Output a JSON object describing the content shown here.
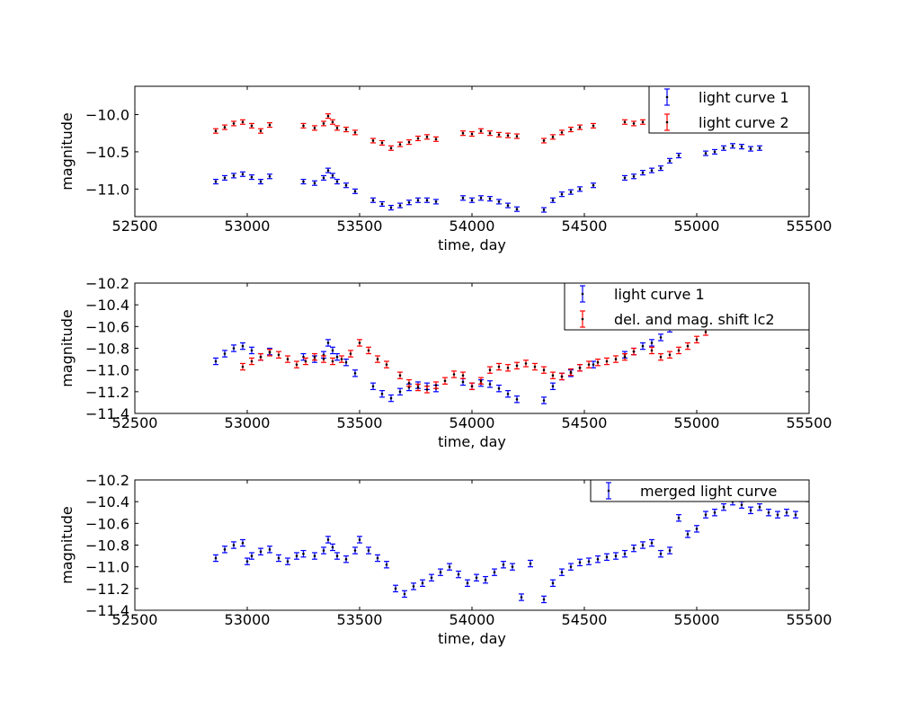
{
  "colors": {
    "series_a": "#0000ff",
    "series_b": "#ff0000",
    "marker": "#000000"
  },
  "chart_data": [
    {
      "type": "scatter",
      "title": "",
      "xlabel": "time, day",
      "ylabel": "magnitude",
      "xlim": [
        52500,
        55500
      ],
      "ylim": [
        -11.37,
        -9.62
      ],
      "y_inverted": true,
      "xticks": [
        "52500",
        "53000",
        "53500",
        "54000",
        "54500",
        "55000",
        "55500"
      ],
      "yticks": [
        "−10.0",
        "−10.5",
        "−11.0"
      ],
      "ytick_values": [
        -10.0,
        -10.5,
        -11.0
      ],
      "error": 0.03,
      "legend_position": "top-right",
      "series": [
        {
          "name": "light curve 1",
          "color": "#0000ff",
          "x": [
            52860,
            52900,
            52940,
            52980,
            53020,
            53060,
            53100,
            53250,
            53300,
            53340,
            53360,
            53380,
            53400,
            53440,
            53480,
            53560,
            53600,
            53640,
            53680,
            53720,
            53760,
            53800,
            53840,
            53960,
            54000,
            54040,
            54080,
            54120,
            54160,
            54200,
            54320,
            54360,
            54400,
            54440,
            54480,
            54540,
            54680,
            54720,
            54760,
            54800,
            54840,
            54880,
            54920,
            55040,
            55080,
            55120,
            55160,
            55200,
            55240,
            55280
          ],
          "y": [
            -10.9,
            -10.85,
            -10.82,
            -10.8,
            -10.84,
            -10.9,
            -10.83,
            -10.9,
            -10.92,
            -10.85,
            -10.75,
            -10.82,
            -10.9,
            -10.95,
            -11.03,
            -11.15,
            -11.2,
            -11.25,
            -11.22,
            -11.18,
            -11.15,
            -11.15,
            -11.17,
            -11.12,
            -11.15,
            -11.12,
            -11.13,
            -11.17,
            -11.22,
            -11.27,
            -11.28,
            -11.15,
            -11.07,
            -11.04,
            -11.0,
            -10.95,
            -10.85,
            -10.83,
            -10.78,
            -10.75,
            -10.72,
            -10.62,
            -10.55,
            -10.52,
            -10.5,
            -10.45,
            -10.42,
            -10.43,
            -10.46,
            -10.45
          ]
        },
        {
          "name": "light curve 2",
          "color": "#ff0000",
          "x": [
            52860,
            52900,
            52940,
            52980,
            53020,
            53060,
            53100,
            53250,
            53300,
            53340,
            53360,
            53380,
            53400,
            53440,
            53480,
            53560,
            53600,
            53640,
            53680,
            53720,
            53760,
            53800,
            53840,
            53960,
            54000,
            54040,
            54080,
            54120,
            54160,
            54200,
            54320,
            54360,
            54400,
            54440,
            54480,
            54540,
            54680,
            54720,
            54760
          ],
          "y": [
            -10.22,
            -10.17,
            -10.12,
            -10.1,
            -10.15,
            -10.22,
            -10.14,
            -10.15,
            -10.18,
            -10.12,
            -10.02,
            -10.1,
            -10.18,
            -10.2,
            -10.24,
            -10.35,
            -10.38,
            -10.45,
            -10.4,
            -10.37,
            -10.32,
            -10.3,
            -10.33,
            -10.25,
            -10.26,
            -10.22,
            -10.25,
            -10.27,
            -10.28,
            -10.29,
            -10.35,
            -10.3,
            -10.24,
            -10.2,
            -10.17,
            -10.15,
            -10.1,
            -10.12,
            -10.1
          ]
        }
      ]
    },
    {
      "type": "scatter",
      "title": "",
      "xlabel": "time, day",
      "ylabel": "magnitude",
      "xlim": [
        52500,
        55500
      ],
      "ylim": [
        -11.4,
        -10.2
      ],
      "y_inverted": true,
      "xticks": [
        "52500",
        "53000",
        "53500",
        "54000",
        "54500",
        "55000",
        "55500"
      ],
      "yticks": [
        "−10.2",
        "−10.4",
        "−10.6",
        "−10.8",
        "−11.0",
        "−11.2",
        "−11.4"
      ],
      "ytick_values": [
        -10.2,
        -10.4,
        -10.6,
        -10.8,
        -11.0,
        -11.2,
        -11.4
      ],
      "error": 0.03,
      "legend_position": "top-right",
      "series": [
        {
          "name": "light curve 1",
          "color": "#0000ff",
          "x": [
            52860,
            52900,
            52940,
            52980,
            53020,
            53060,
            53100,
            53250,
            53300,
            53340,
            53360,
            53380,
            53400,
            53440,
            53480,
            53560,
            53600,
            53640,
            53680,
            53720,
            53760,
            53800,
            53840,
            53960,
            54000,
            54040,
            54080,
            54120,
            54160,
            54200,
            54320,
            54360,
            54400,
            54440,
            54480,
            54540,
            54680,
            54720,
            54760,
            54800,
            54840,
            54880
          ],
          "y": [
            -10.92,
            -10.85,
            -10.8,
            -10.78,
            -10.82,
            -10.88,
            -10.83,
            -10.88,
            -10.9,
            -10.86,
            -10.75,
            -10.82,
            -10.88,
            -10.93,
            -11.03,
            -11.15,
            -11.22,
            -11.26,
            -11.2,
            -11.16,
            -11.14,
            -11.15,
            -11.17,
            -11.11,
            -11.15,
            -11.12,
            -11.13,
            -11.17,
            -11.22,
            -11.27,
            -11.28,
            -11.15,
            -11.06,
            -11.03,
            -10.98,
            -10.95,
            -10.86,
            -10.83,
            -10.78,
            -10.75,
            -10.7,
            -10.62
          ]
        },
        {
          "name": "del. and mag. shift lc2",
          "color": "#ff0000",
          "x": [
            52980,
            53020,
            53060,
            53100,
            53140,
            53180,
            53220,
            53260,
            53300,
            53340,
            53380,
            53420,
            53460,
            53500,
            53540,
            53580,
            53620,
            53680,
            53720,
            53760,
            53800,
            53840,
            53880,
            53920,
            53960,
            54000,
            54040,
            54080,
            54120,
            54160,
            54200,
            54240,
            54280,
            54320,
            54360,
            54400,
            54440,
            54480,
            54520,
            54560,
            54600,
            54640,
            54680,
            54720,
            54800,
            54840,
            54880,
            54920,
            54960,
            55000,
            55040
          ],
          "y": [
            -10.97,
            -10.92,
            -10.88,
            -10.84,
            -10.86,
            -10.9,
            -10.95,
            -10.92,
            -10.88,
            -10.9,
            -10.92,
            -10.9,
            -10.85,
            -10.75,
            -10.82,
            -10.9,
            -10.95,
            -11.05,
            -11.12,
            -11.16,
            -11.18,
            -11.14,
            -11.1,
            -11.04,
            -11.05,
            -11.15,
            -11.1,
            -11.0,
            -10.97,
            -10.98,
            -10.96,
            -10.94,
            -10.97,
            -11.0,
            -11.05,
            -11.06,
            -11.02,
            -10.98,
            -10.95,
            -10.93,
            -10.92,
            -10.9,
            -10.88,
            -10.83,
            -10.82,
            -10.88,
            -10.86,
            -10.82,
            -10.78,
            -10.72,
            -10.65
          ]
        }
      ]
    },
    {
      "type": "scatter",
      "title": "",
      "xlabel": "time, day",
      "ylabel": "magnitude",
      "xlim": [
        52500,
        55500
      ],
      "ylim": [
        -11.4,
        -10.2
      ],
      "y_inverted": true,
      "xticks": [
        "52500",
        "53000",
        "53500",
        "54000",
        "54500",
        "55000",
        "55500"
      ],
      "yticks": [
        "−10.2",
        "−10.4",
        "−10.6",
        "−10.8",
        "−11.0",
        "−11.2",
        "−11.4"
      ],
      "ytick_values": [
        -10.2,
        -10.4,
        -10.6,
        -10.8,
        -11.0,
        -11.2,
        -11.4
      ],
      "error": 0.03,
      "legend_position": "top-right",
      "series": [
        {
          "name": "merged light curve",
          "color": "#0000ff",
          "x": [
            52860,
            52900,
            52940,
            52980,
            53000,
            53020,
            53060,
            53100,
            53140,
            53180,
            53220,
            53250,
            53300,
            53340,
            53360,
            53380,
            53400,
            53440,
            53480,
            53500,
            53540,
            53580,
            53620,
            53660,
            53700,
            53740,
            53780,
            53820,
            53860,
            53900,
            53940,
            53980,
            54020,
            54060,
            54100,
            54140,
            54180,
            54220,
            54260,
            54320,
            54360,
            54400,
            54440,
            54480,
            54520,
            54560,
            54600,
            54640,
            54680,
            54720,
            54760,
            54800,
            54840,
            54880,
            54920,
            54960,
            55000,
            55040,
            55080,
            55120,
            55160,
            55200,
            55240,
            55280,
            55320,
            55360,
            55400,
            55440
          ],
          "y": [
            -10.92,
            -10.84,
            -10.8,
            -10.78,
            -10.95,
            -10.9,
            -10.86,
            -10.84,
            -10.92,
            -10.95,
            -10.9,
            -10.88,
            -10.9,
            -10.85,
            -10.75,
            -10.82,
            -10.9,
            -10.93,
            -10.85,
            -10.75,
            -10.85,
            -10.92,
            -10.98,
            -11.2,
            -11.25,
            -11.18,
            -11.15,
            -11.1,
            -11.05,
            -11.0,
            -11.07,
            -11.15,
            -11.1,
            -11.12,
            -11.05,
            -10.98,
            -11.0,
            -11.28,
            -10.97,
            -11.3,
            -11.15,
            -11.05,
            -11.0,
            -10.96,
            -10.95,
            -10.93,
            -10.91,
            -10.9,
            -10.88,
            -10.83,
            -10.8,
            -10.78,
            -10.88,
            -10.85,
            -10.55,
            -10.7,
            -10.65,
            -10.52,
            -10.5,
            -10.45,
            -10.4,
            -10.43,
            -10.48,
            -10.45,
            -10.5,
            -10.52,
            -10.5,
            -10.52
          ]
        }
      ]
    }
  ]
}
